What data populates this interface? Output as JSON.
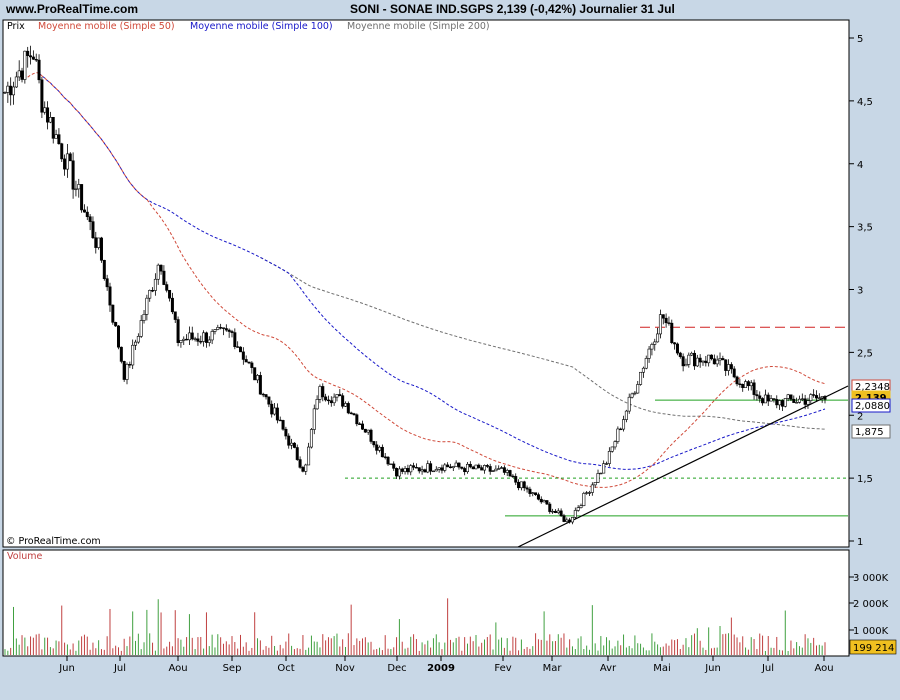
{
  "header": {
    "site": "www.ProRealTime.com",
    "title": "SONI - SONAE IND.SGPS    2,139 (-0,42%)    Journalier  31 Jul"
  },
  "legend": {
    "prix": "Prix",
    "ma50": "Moyenne mobile (Simple 50)",
    "ma100": "Moyenne mobile (Simple 100)",
    "ma200": "Moyenne mobile (Simple 200)",
    "volume": "Volume",
    "copyright": "© ProRealTime.com"
  },
  "colors": {
    "ma50": "#d04a3a",
    "ma100": "#1818c8",
    "ma200": "#707070",
    "up": "#40a040",
    "down": "#c04040",
    "background": "#ffffff"
  },
  "chart_data": {
    "type": "candlestick",
    "title": "SONI - SONAE IND.SGPS",
    "last_price": "2,139",
    "change": "(-0,42%)",
    "period": "Journalier",
    "date": "31 Jul",
    "ylim": [
      1,
      5
    ],
    "y_ticks": [
      "5",
      "4,5",
      "4",
      "3,5",
      "3",
      "2,5",
      "2",
      "1,5",
      "1"
    ],
    "x_ticks": [
      "Jun",
      "Jul",
      "Aou",
      "Sep",
      "Oct",
      "Nov",
      "Dec",
      "2009",
      "Fev",
      "Mar",
      "Avr",
      "Mai",
      "Jun",
      "Jul",
      "Aou"
    ],
    "price_path": [
      [
        "May",
        4.57
      ],
      [
        "Mid-May",
        4.9
      ],
      [
        "Late-May",
        4.5
      ],
      [
        "Jun",
        4.0
      ],
      [
        "Mid-Jun",
        3.3
      ],
      [
        "Jul",
        2.3
      ],
      [
        "Late-Jul",
        3.25
      ],
      [
        "Aou",
        2.6
      ],
      [
        "Sep",
        2.65
      ],
      [
        "Oct",
        1.55
      ],
      [
        "Mid-Oct",
        2.2
      ],
      [
        "Nov",
        2.1
      ],
      [
        "Dec",
        1.55
      ],
      [
        "2009",
        1.6
      ],
      [
        "Fev",
        1.55
      ],
      [
        "Mar",
        1.15
      ],
      [
        "Avr",
        1.65
      ],
      [
        "Mai",
        2.8
      ],
      [
        "Mid-Mai",
        2.45
      ],
      [
        "Jun",
        2.45
      ],
      [
        "Jul",
        2.1
      ],
      [
        "Aou",
        2.139
      ]
    ],
    "horizontal_lines": [
      {
        "value": 2.7,
        "style": "red-dashed"
      },
      {
        "value": 2.12,
        "style": "green-solid"
      },
      {
        "value": 1.5,
        "style": "green-dotted"
      },
      {
        "value": 1.2,
        "style": "green-solid"
      }
    ],
    "price_labels": [
      {
        "value": "2,2348",
        "color": "#d04a3a"
      },
      {
        "value": "2,139",
        "color": "#f0c020"
      },
      {
        "value": "2,0880",
        "color": "#1818c8"
      },
      {
        "value": "1,875",
        "color": "#707070"
      }
    ],
    "volume_ticks": [
      "3 000K",
      "2 000K",
      "1 000K"
    ],
    "volume_last": "199 214"
  }
}
